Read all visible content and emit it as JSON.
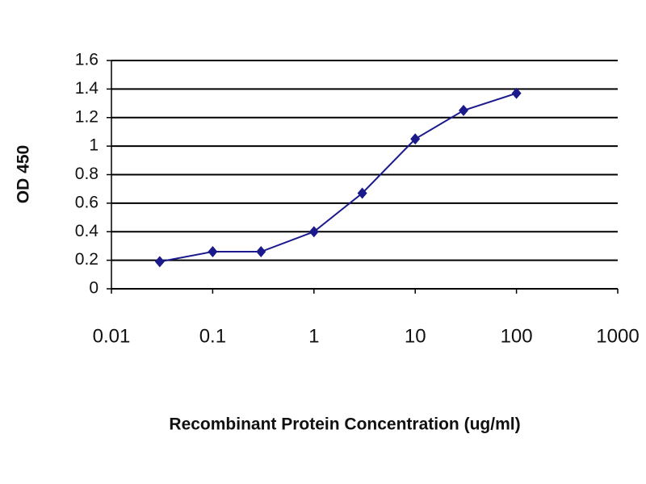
{
  "chart_data": {
    "type": "line",
    "x_label": "Recombinant Protein Concentration (ug/ml)",
    "y_label": "OD 450",
    "x": [
      0.03,
      0.1,
      0.3,
      1,
      3,
      10,
      30,
      100
    ],
    "series": [
      {
        "name": "OD 450",
        "color": "#1a1a8c",
        "marker": "diamond",
        "values": [
          0.19,
          0.26,
          0.26,
          0.4,
          0.67,
          1.05,
          1.25,
          1.37
        ]
      }
    ],
    "xscale": "log",
    "xlim": [
      0.01,
      1000
    ],
    "xticks": [
      0.01,
      0.1,
      1,
      10,
      100,
      1000
    ],
    "ylim": [
      0,
      1.6
    ],
    "yticks": [
      0,
      0.2,
      0.4,
      0.6,
      0.8,
      1,
      1.2,
      1.4,
      1.6
    ],
    "grid": true
  }
}
